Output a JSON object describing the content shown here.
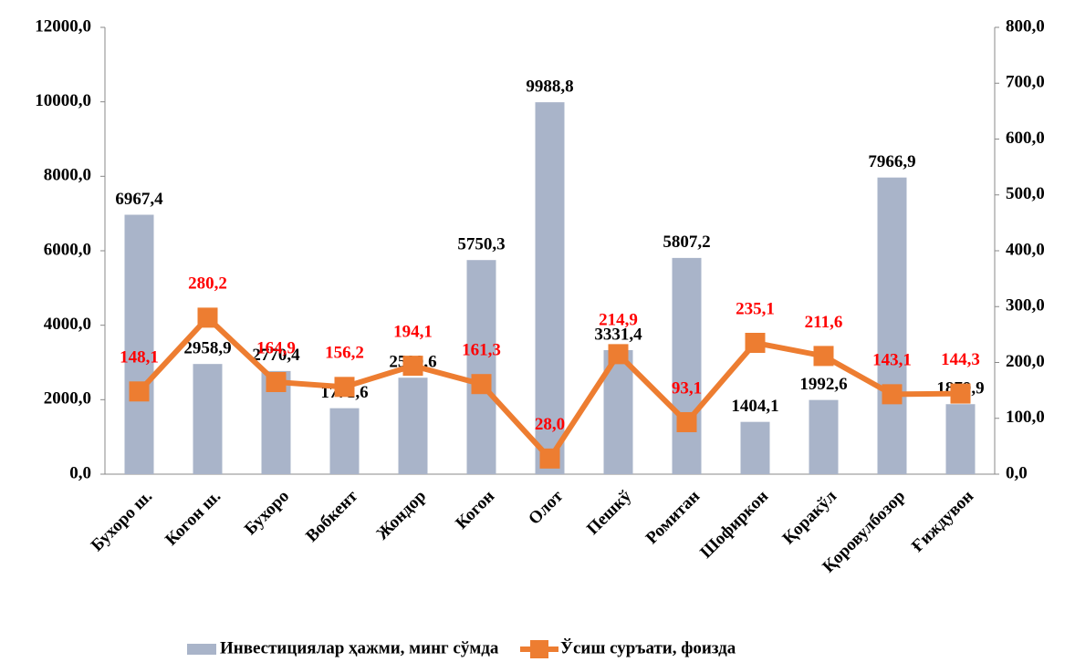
{
  "chart_data": {
    "type": "bar",
    "categories": [
      "Бухоро ш.",
      "Когон ш.",
      "Бухоро",
      "Вобкент",
      "Жондор",
      "Когон",
      "Олот",
      "Пешкў",
      "Ромитан",
      "Шофиркон",
      "Қоракўл",
      "Қоровулбозор",
      "Ғиждувон"
    ],
    "series": [
      {
        "name": "Инвестициялар ҳажми, минг сўмда",
        "type": "bar",
        "color": "#a9b4c9",
        "values": [
          6967.4,
          2958.9,
          2770.4,
          1771.6,
          2590.6,
          5750.3,
          9988.8,
          3331.4,
          5807.2,
          1404.1,
          1992.6,
          7966.9,
          1879.9
        ],
        "value_labels": [
          "6967,4",
          "2958,9",
          "2770,4",
          "1771,6",
          "2590,6",
          "5750,3",
          "9988,8",
          "3331,4",
          "5807,2",
          "1404,1",
          "1992,6",
          "7966,9",
          "1879,9"
        ]
      },
      {
        "name": "Ўсиш суръати, фоизда",
        "type": "line",
        "axis": "y2",
        "color": "#ed7d31",
        "values": [
          148.1,
          280.2,
          164.9,
          156.2,
          194.1,
          161.3,
          28.0,
          214.9,
          93.1,
          235.1,
          211.6,
          143.1,
          144.3
        ],
        "value_labels": [
          "148,1",
          "280,2",
          "164,9",
          "156,2",
          "194,1",
          "161,3",
          "28,0",
          "214,9",
          "93,1",
          "235,1",
          "211,6",
          "143,1",
          "144,3"
        ]
      }
    ],
    "ylim": [
      0,
      12000
    ],
    "yticks": [
      {
        "value": 0,
        "label": "0,0"
      },
      {
        "value": 2000,
        "label": "2000,0"
      },
      {
        "value": 4000,
        "label": "4000,0"
      },
      {
        "value": 6000,
        "label": "6000,0"
      },
      {
        "value": 8000,
        "label": "8000,0"
      },
      {
        "value": 10000,
        "label": "10000,0"
      },
      {
        "value": 12000,
        "label": "12000,0"
      }
    ],
    "y2lim": [
      0,
      800
    ],
    "y2ticks": [
      {
        "value": 0,
        "label": "0,0"
      },
      {
        "value": 100,
        "label": "100,0"
      },
      {
        "value": 200,
        "label": "200,0"
      },
      {
        "value": 300,
        "label": "300,0"
      },
      {
        "value": 400,
        "label": "400,0"
      },
      {
        "value": 500,
        "label": "500,0"
      },
      {
        "value": 600,
        "label": "600,0"
      },
      {
        "value": 700,
        "label": "700,0"
      },
      {
        "value": 800,
        "label": "800,0"
      }
    ],
    "legend": "bottom"
  }
}
